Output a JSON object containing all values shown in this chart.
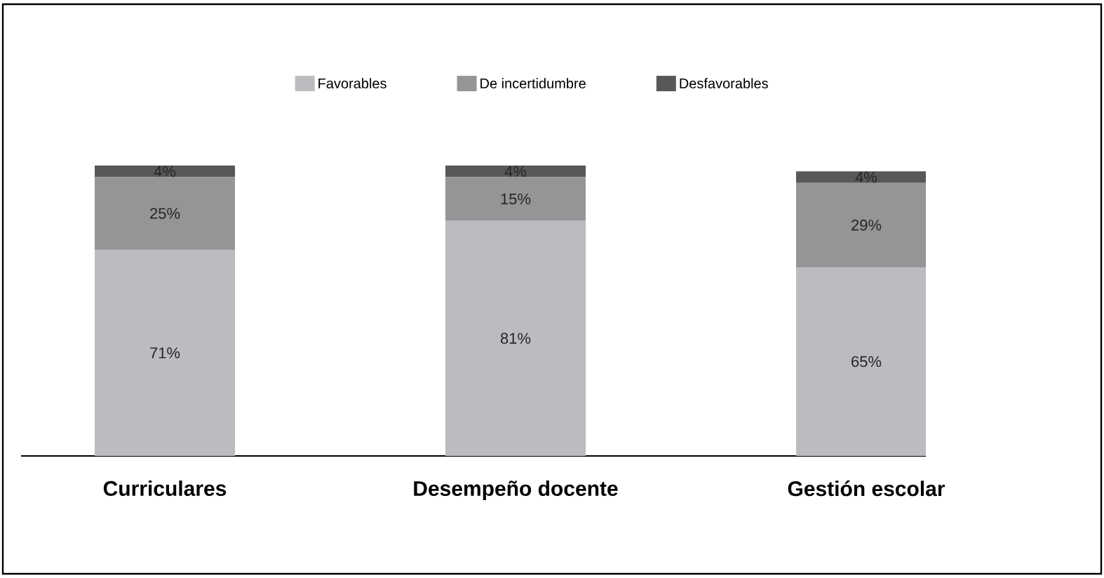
{
  "chart_data": {
    "type": "bar",
    "stacked": true,
    "categories": [
      "Curriculares",
      "Desempeño docente",
      "Gestión escolar"
    ],
    "series": [
      {
        "name": "Favorables",
        "color": "#bcbcc0",
        "values": [
          71,
          81,
          65
        ],
        "value_labels": [
          "71%",
          "81%",
          "65%"
        ]
      },
      {
        "name": "De incertidumbre",
        "color": "#959597",
        "values": [
          25,
          15,
          29
        ],
        "value_labels": [
          "25%",
          "15%",
          "29%"
        ]
      },
      {
        "name": "Desfavorables",
        "color": "#58585a",
        "values": [
          4,
          4,
          4
        ],
        "value_labels": [
          "4%",
          "4%",
          "4%"
        ]
      }
    ],
    "legend": "top"
  }
}
